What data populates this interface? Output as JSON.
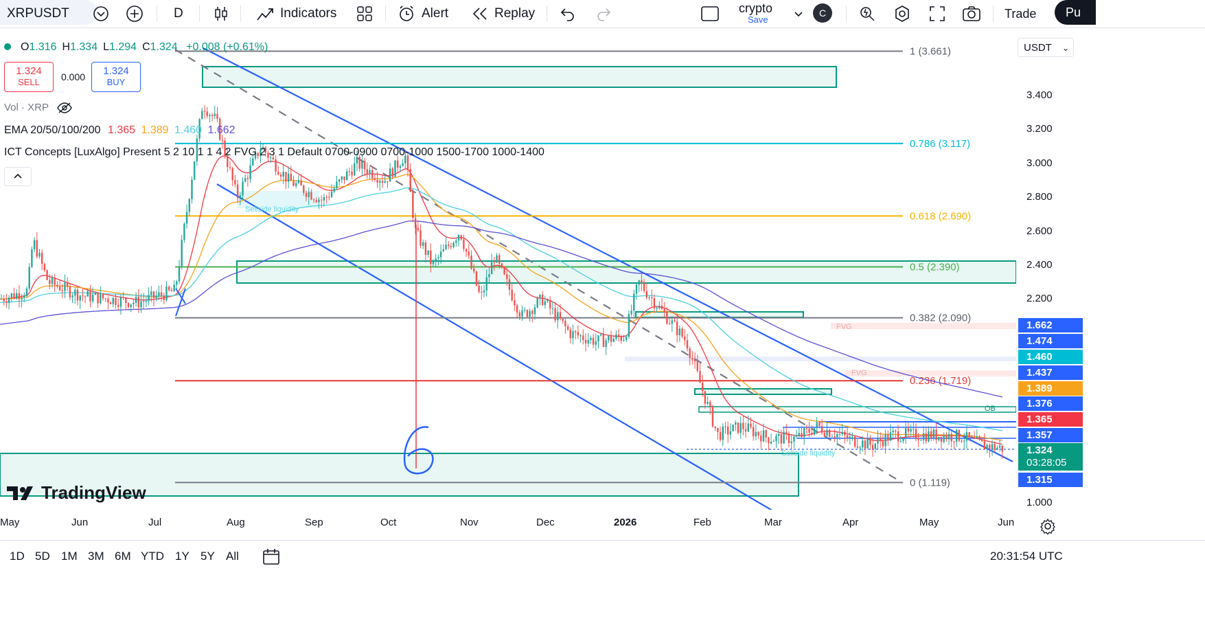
{
  "toolbar": {
    "symbol": "XRPUSDT",
    "interval": "D",
    "indicators": "Indicators",
    "alert": "Alert",
    "replay": "Replay",
    "layout_name": "crypto",
    "layout_save": "Save",
    "avatar_letter": "C",
    "trade": "Trade",
    "publish": "Pu"
  },
  "legend": {
    "ohlc": [
      {
        "k": "O",
        "v": "1.316"
      },
      {
        "k": "H",
        "v": "1.334"
      },
      {
        "k": "L",
        "v": "1.294"
      },
      {
        "k": "C",
        "v": "1.324"
      }
    ],
    "change": "+0.008 (+0.61%)",
    "sell_price": "1.324",
    "sell_label": "SELL",
    "spread": "0.000",
    "buy_price": "1.324",
    "buy_label": "BUY",
    "vol": "Vol · XRP",
    "ema_name": "EMA 20/50/100/200",
    "ema_values": [
      "1.365",
      "1.389",
      "1.460",
      "1.662"
    ],
    "ict": "ICT Concepts [LuxAlgo] Present 5 2 10 1 1 4 2 FVG 2 3 1 Default 0700-0900 0700-1000 1500-1700 1000-1400"
  },
  "colors": {
    "up": "#26a69a",
    "down": "#ef5350",
    "channel": "#2962ff",
    "ema20": "#f23645",
    "ema50": "#f7a21b",
    "ema100": "#4dd0e1",
    "ema200": "#5c4fd6",
    "fib_gray": "#787b86",
    "fib_cyan": "#00bcd4",
    "fib_gold": "#f5b400",
    "fib_green": "#4caf50",
    "fib_red": "#e53935",
    "zone": "#089981"
  },
  "chart_data": {
    "type": "candlestick",
    "symbol": "XRPUSDT",
    "interval": "D",
    "x_labels": [
      "May",
      "Jun",
      "Jul",
      "Aug",
      "Sep",
      "Oct",
      "Nov",
      "Dec",
      "2026",
      "Feb",
      "Mar",
      "Apr",
      "May",
      "Jun"
    ],
    "y_ticks": [
      "3.400",
      "3.200",
      "3.000",
      "2.800",
      "2.600",
      "2.400",
      "2.200",
      "1.000"
    ],
    "y_range": [
      1.0,
      3.6
    ],
    "fib_levels": [
      {
        "label": "1 (3.661)",
        "value": 3.661,
        "color": "#787b86"
      },
      {
        "label": "0.786 (3.117)",
        "value": 3.117,
        "color": "#00bcd4"
      },
      {
        "label": "0.618 (2.690)",
        "value": 2.69,
        "color": "#f5b400"
      },
      {
        "label": "0.5 (2.390)",
        "value": 2.39,
        "color": "#4caf50"
      },
      {
        "label": "0.382 (2.090)",
        "value": 2.09,
        "color": "#787b86"
      },
      {
        "label": "0.236 (1.719)",
        "value": 1.719,
        "color": "#e53935"
      },
      {
        "label": "0 (1.119)",
        "value": 1.119,
        "color": "#787b86"
      }
    ],
    "price_tags": [
      {
        "value": "1.662",
        "bg": "#2962ff"
      },
      {
        "value": "1.474",
        "bg": "#2962ff"
      },
      {
        "value": "1.460",
        "bg": "#00bcd4"
      },
      {
        "value": "1.437",
        "bg": "#2962ff"
      },
      {
        "value": "1.389",
        "bg": "#f7a21b"
      },
      {
        "value": "1.376",
        "bg": "#2962ff"
      },
      {
        "value": "1.365",
        "bg": "#f23645"
      },
      {
        "value": "1.357",
        "bg": "#2962ff"
      },
      {
        "value": "1.324",
        "bg": "#089981"
      },
      {
        "value": "1.315",
        "bg": "#2962ff"
      }
    ],
    "countdown": "03:28:05",
    "annotations": [
      "Sellside liquidity",
      "Sellside liquidity",
      "FVG",
      "FVG",
      "OB",
      "6"
    ],
    "axis_currency": "USDT"
  },
  "bottom": {
    "ranges": [
      "1D",
      "5D",
      "1M",
      "3M",
      "6M",
      "YTD",
      "1Y",
      "5Y",
      "All"
    ],
    "clock": "20:31:54 UTC"
  },
  "watermark": "TradingView"
}
